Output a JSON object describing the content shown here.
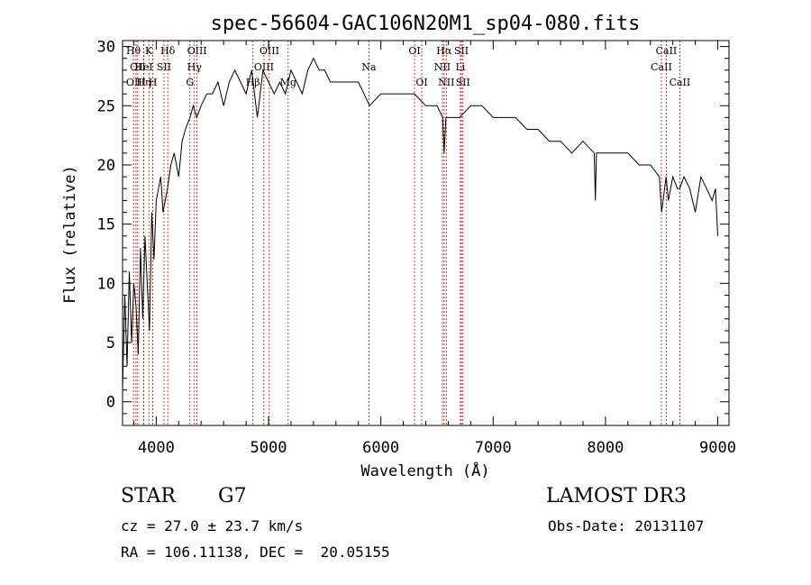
{
  "chart_data": {
    "type": "line",
    "title": "spec-56604-GAC106N20M1_sp04-080.fits",
    "xlabel": "Wavelength (Å)",
    "ylabel": "Flux (relative)",
    "xlim": [
      3700,
      9100
    ],
    "ylim": [
      -2,
      30.5
    ],
    "xticks": [
      4000,
      5000,
      6000,
      7000,
      8000,
      9000
    ],
    "yticks": [
      0,
      5,
      10,
      15,
      20,
      25,
      30
    ],
    "series": [
      {
        "x": [
          3700,
          3720,
          3740,
          3760,
          3780,
          3800,
          3820,
          3840,
          3860,
          3880,
          3900,
          3920,
          3940,
          3960,
          3980,
          4000,
          4020,
          4040,
          4060,
          4080,
          4100,
          4130,
          4160,
          4200,
          4230,
          4260,
          4300,
          4330,
          4360,
          4400,
          4450,
          4500,
          4550,
          4600,
          4650,
          4700,
          4750,
          4800,
          4850,
          4900,
          4950,
          5000,
          5050,
          5100,
          5150,
          5200,
          5250,
          5300,
          5350,
          5400,
          5450,
          5500,
          5550,
          5600,
          5700,
          5800,
          5900,
          6000,
          6100,
          6200,
          6300,
          6400,
          6500,
          6550,
          6563,
          6580,
          6600,
          6700,
          6800,
          6900,
          7000,
          7100,
          7200,
          7300,
          7400,
          7500,
          7600,
          7700,
          7800,
          7900,
          7910,
          7920,
          8000,
          8100,
          8200,
          8300,
          8400,
          8480,
          8500,
          8540,
          8560,
          8600,
          8640,
          8660,
          8700,
          8750,
          8800,
          8850,
          8900,
          8950,
          8980,
          9000
        ],
        "y": [
          1,
          9,
          3,
          11,
          5,
          10,
          8,
          4,
          13,
          7,
          14,
          10,
          6,
          16,
          12,
          17,
          18,
          19,
          16,
          17,
          18,
          20,
          21,
          19,
          22,
          23,
          24,
          25,
          24,
          25,
          26,
          26,
          27,
          25,
          27,
          28,
          27,
          26,
          28,
          24,
          28,
          27,
          26,
          27,
          26,
          28,
          27,
          26,
          28,
          29,
          28,
          28,
          27,
          27,
          27,
          27,
          25,
          26,
          26,
          26,
          26,
          25,
          25,
          24,
          21,
          24,
          24,
          24,
          25,
          25,
          24,
          24,
          24,
          23,
          23,
          22,
          22,
          21,
          22,
          21,
          17,
          21,
          21,
          21,
          21,
          20,
          20,
          19,
          16,
          19,
          17,
          19,
          18,
          18,
          19,
          18,
          16,
          19,
          18,
          17,
          18,
          14
        ]
      }
    ],
    "line_marks": [
      {
        "wl": 3797,
        "label": "Hθ",
        "row": 0
      },
      {
        "wl": 3835,
        "label": "OII",
        "row": 1
      },
      {
        "wl": 3820,
        "label": "OIII",
        "row": 2
      },
      {
        "wl": 3889,
        "label": "Hη",
        "row": 2
      },
      {
        "wl": 3934,
        "label": "K",
        "row": 0
      },
      {
        "wl": 3889,
        "label": "HeI",
        "row": 1
      },
      {
        "wl": 3970,
        "label": "H",
        "row": 2
      },
      {
        "wl": 4069,
        "label": "SII",
        "row": 1
      },
      {
        "wl": 4102,
        "label": "Hδ",
        "row": 0
      },
      {
        "wl": 4300,
        "label": "G",
        "row": 2
      },
      {
        "wl": 4340,
        "label": "Hγ",
        "row": 1
      },
      {
        "wl": 4363,
        "label": "OIII",
        "row": 0
      },
      {
        "wl": 4861,
        "label": "Hβ",
        "row": 2
      },
      {
        "wl": 4959,
        "label": "OIII",
        "row": 1
      },
      {
        "wl": 5007,
        "label": "OIII",
        "row": 0
      },
      {
        "wl": 5175,
        "label": "Mg",
        "row": 2
      },
      {
        "wl": 5893,
        "label": "Na",
        "row": 1
      },
      {
        "wl": 6300,
        "label": "OI",
        "row": 0
      },
      {
        "wl": 6364,
        "label": "OI",
        "row": 2
      },
      {
        "wl": 6548,
        "label": "NII",
        "row": 1
      },
      {
        "wl": 6563,
        "label": "Hα",
        "row": 0
      },
      {
        "wl": 6583,
        "label": "NII",
        "row": 2
      },
      {
        "wl": 6708,
        "label": "Li",
        "row": 1
      },
      {
        "wl": 6717,
        "label": "SII",
        "row": 0
      },
      {
        "wl": 6731,
        "label": "SII",
        "row": 2
      },
      {
        "wl": 8498,
        "label": "CaII",
        "row": 1
      },
      {
        "wl": 8542,
        "label": "CaII",
        "row": 0
      },
      {
        "wl": 8662,
        "label": "CaII",
        "row": 2
      }
    ]
  },
  "info": {
    "object_class": "STAR",
    "subclass": "G7",
    "cz": "cz = 27.0 ± 23.7 km/s",
    "coords": "RA = 106.11138, DEC =  20.05155",
    "survey": "LAMOST DR3",
    "obs_date": "Obs-Date: 20131107"
  },
  "colors": {
    "spectrum": "#000000",
    "line_marker": "#cc0000",
    "axes": "#000000"
  }
}
